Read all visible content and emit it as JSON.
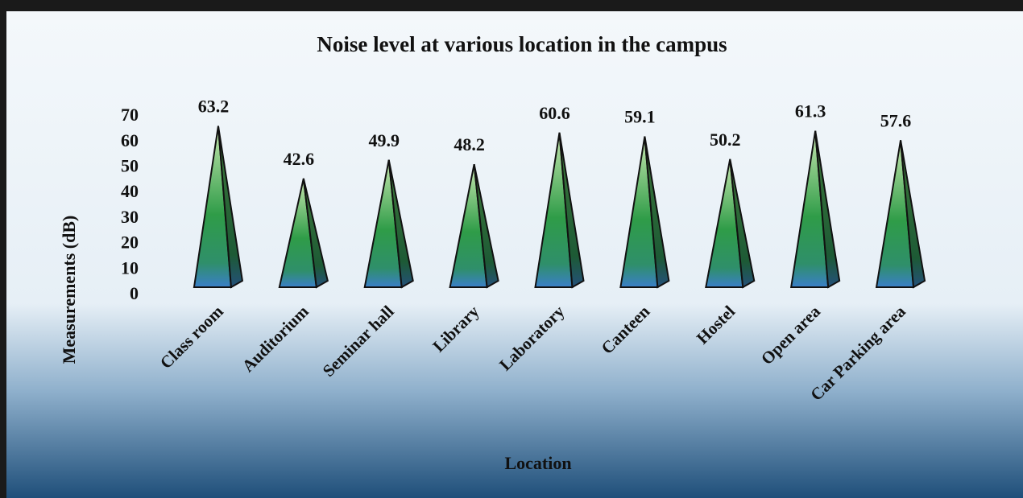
{
  "chart_data": {
    "type": "pyramid",
    "title": "Noise level at various location in the campus",
    "x_label": "Location",
    "y_label": "Measurements (dB)",
    "categories": [
      "Class room",
      "Auditorium",
      "Seminar hall",
      "Library",
      "Laboratory",
      "Canteen",
      "Hostel",
      "Open area",
      "Car Parking area"
    ],
    "values": [
      63.2,
      42.6,
      49.9,
      48.2,
      60.6,
      59.1,
      50.2,
      61.3,
      57.6
    ],
    "ylim": [
      0,
      70
    ],
    "yticks": [
      0,
      10,
      20,
      30,
      40,
      50,
      60,
      70
    ],
    "grid": false
  }
}
